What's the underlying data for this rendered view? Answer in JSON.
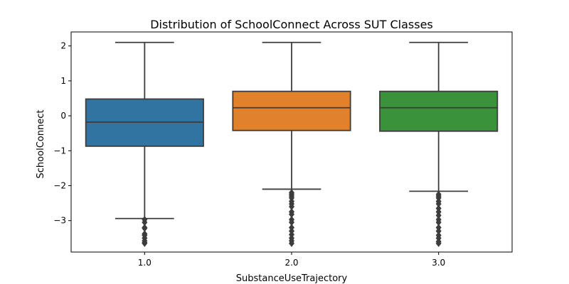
{
  "chart_data": {
    "type": "box",
    "title": "Distribution of SchoolConnect Across SUT Classes",
    "xlabel": "SubstanceUseTrajectory",
    "ylabel": "SchoolConnect",
    "categories": [
      "1.0",
      "2.0",
      "3.0"
    ],
    "y_ticks": [
      2,
      1,
      0,
      -1,
      -2,
      -3
    ],
    "y_tick_labels": [
      "2",
      "1",
      "0",
      "−1",
      "−2",
      "−3"
    ],
    "ylim": [
      -3.9,
      2.4
    ],
    "grid": false,
    "boxes": [
      {
        "category": "1.0",
        "color": "#3274a1",
        "whisker_low": -2.94,
        "q1": -0.87,
        "median": -0.18,
        "q3": 0.48,
        "whisker_high": 2.1,
        "outliers": [
          -2.97,
          -3.05,
          -3.2,
          -3.22,
          -3.38,
          -3.42,
          -3.5,
          -3.58,
          -3.63,
          -3.65
        ]
      },
      {
        "category": "2.0",
        "color": "#e1812c",
        "whisker_low": -2.1,
        "q1": -0.42,
        "median": 0.23,
        "q3": 0.7,
        "whisker_high": 2.1,
        "outliers": [
          -2.2,
          -2.25,
          -2.3,
          -2.35,
          -2.45,
          -2.52,
          -2.6,
          -2.75,
          -2.82,
          -2.97,
          -3.05,
          -3.2,
          -3.3,
          -3.4,
          -3.5,
          -3.58,
          -3.65
        ]
      },
      {
        "category": "3.0",
        "color": "#3a923a",
        "whisker_low": -2.16,
        "q1": -0.44,
        "median": 0.23,
        "q3": 0.7,
        "whisker_high": 2.1,
        "outliers": [
          -2.25,
          -2.3,
          -2.35,
          -2.45,
          -2.52,
          -2.65,
          -2.75,
          -2.85,
          -2.97,
          -3.05,
          -3.2,
          -3.3,
          -3.42,
          -3.5,
          -3.6,
          -3.65
        ]
      }
    ]
  }
}
